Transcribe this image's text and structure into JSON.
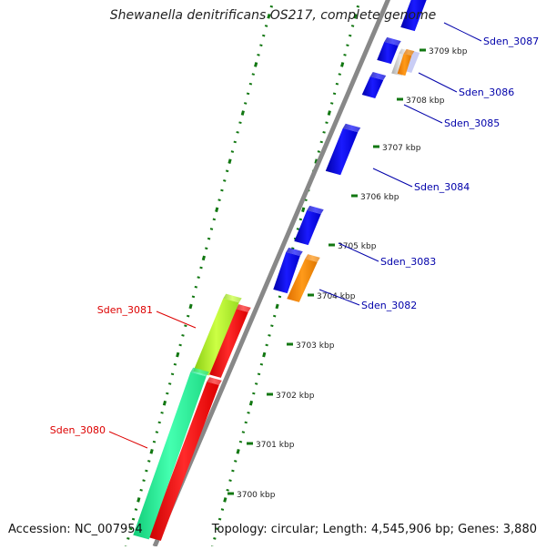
{
  "title": "Shewanella denitrificans OS217, complete genome",
  "footer": {
    "accession_label": "Accession:",
    "accession": "NC_007954",
    "topology_label": "Topology:",
    "topology": "circular",
    "length_label": "Length:",
    "length": "4,545,906 bp",
    "genes_label": "Genes:",
    "genes": "3,880"
  },
  "colors": {
    "backbone": "#888888",
    "tick": "#117711",
    "forward_gene": "#0000ee",
    "pseudo_gene": "#ff8800",
    "other_gene": "#cccccc",
    "green_gene": "#aaee22",
    "cyan_gene": "#22ee99",
    "red_gene": "#ff1111",
    "label_blue": "#0000aa",
    "label_red": "#dd0000"
  },
  "kbp_ticks": [
    "3700 kbp",
    "3701 kbp",
    "3702 kbp",
    "3703 kbp",
    "3704 kbp",
    "3705 kbp",
    "3706 kbp",
    "3707 kbp",
    "3708 kbp",
    "3709 kbp"
  ],
  "gene_labels": [
    {
      "text": "Sden_3087",
      "color": "blue"
    },
    {
      "text": "Sden_3086",
      "color": "blue"
    },
    {
      "text": "Sden_3085",
      "color": "blue"
    },
    {
      "text": "Sden_3084",
      "color": "blue"
    },
    {
      "text": "Sden_3083",
      "color": "blue"
    },
    {
      "text": "Sden_3082",
      "color": "blue"
    },
    {
      "text": "Sden_3081",
      "color": "red"
    },
    {
      "text": "Sden_3080",
      "color": "red"
    }
  ]
}
